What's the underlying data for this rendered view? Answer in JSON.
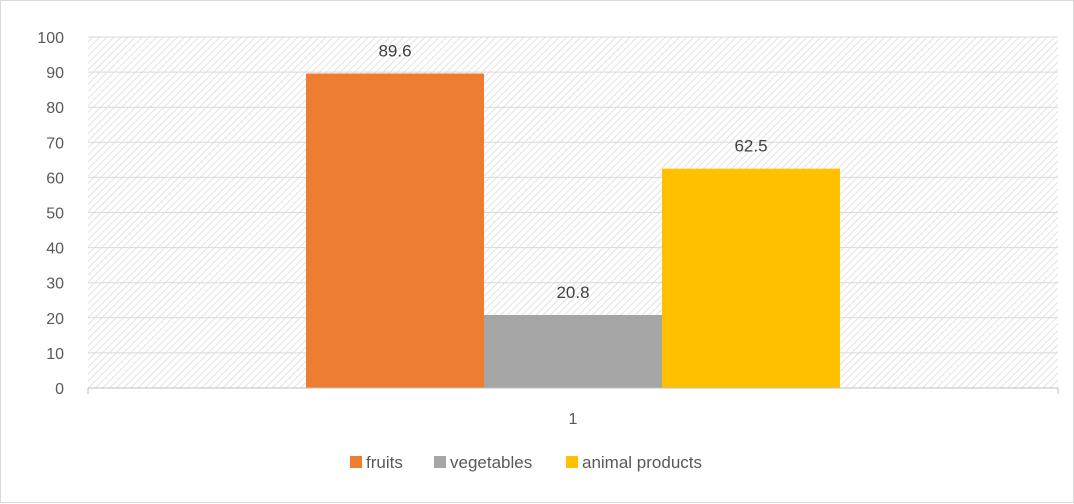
{
  "chart_data": {
    "type": "bar",
    "categories": [
      "1"
    ],
    "series": [
      {
        "name": "fruits",
        "values": [
          89.6
        ],
        "color": "#ED7D31"
      },
      {
        "name": "vegetables",
        "values": [
          20.8
        ],
        "color": "#A5A5A5"
      },
      {
        "name": "animal products",
        "values": [
          62.5
        ],
        "color": "#FFC000"
      }
    ],
    "ylim": [
      0,
      100
    ],
    "y_ticks": [
      "0",
      "10",
      "20",
      "30",
      "40",
      "50",
      "60",
      "70",
      "80",
      "90",
      "100"
    ],
    "grid": true,
    "legend_position": "bottom",
    "plot_background": "hatched"
  }
}
